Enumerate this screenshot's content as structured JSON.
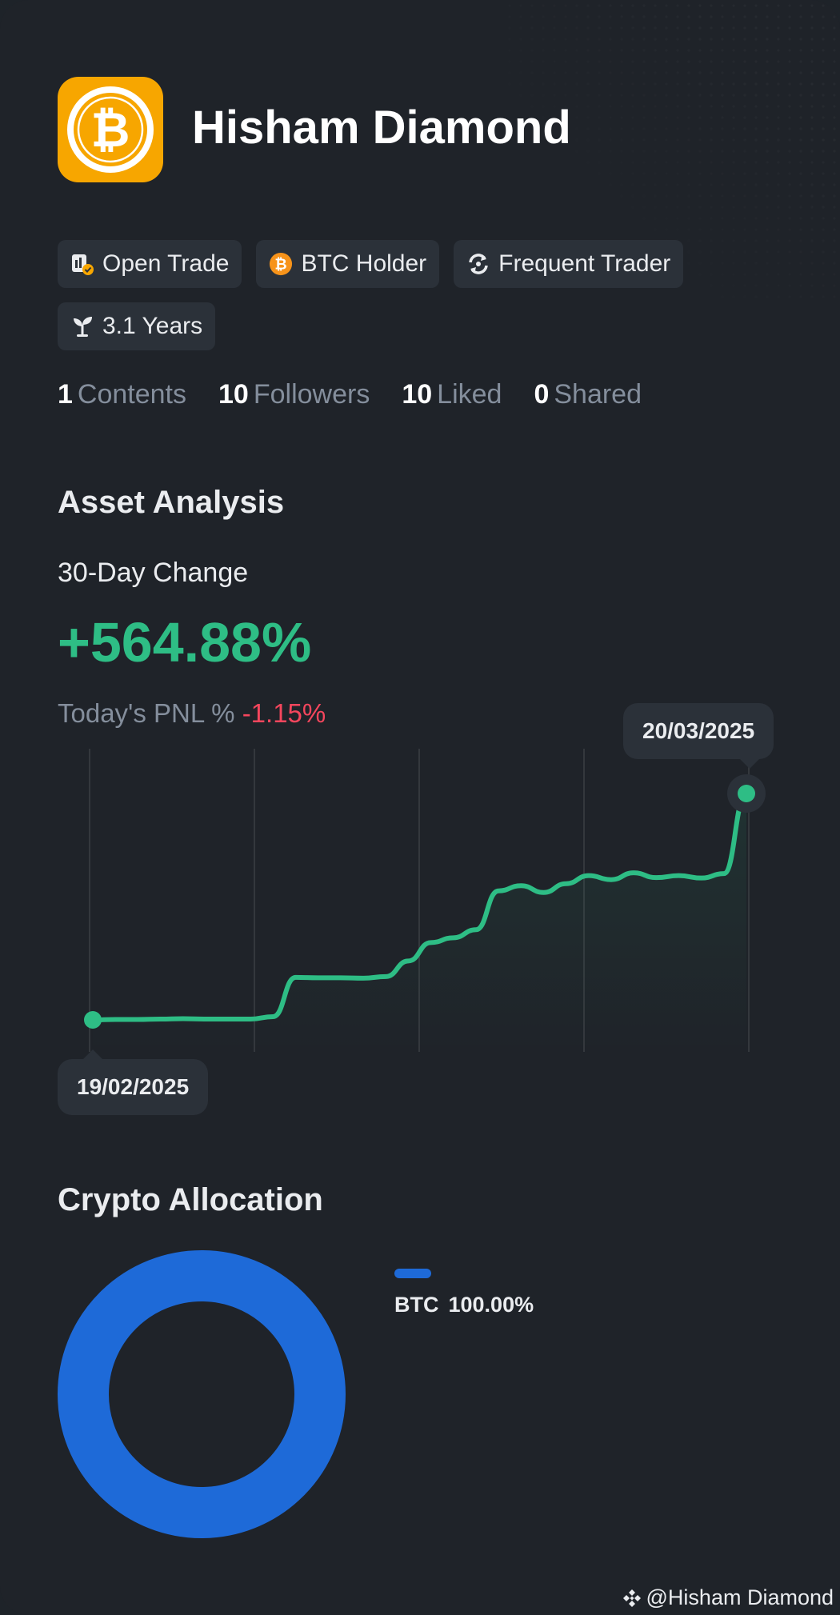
{
  "profile": {
    "name": "Hisham Diamond"
  },
  "tags": [
    {
      "icon": "open-trade-icon",
      "label": "Open Trade"
    },
    {
      "icon": "bitcoin-icon",
      "label": "BTC Holder"
    },
    {
      "icon": "refresh-icon",
      "label": "Frequent Trader"
    },
    {
      "icon": "sprout-icon",
      "label": "3.1 Years"
    }
  ],
  "stats": [
    {
      "count": "1",
      "label": "Contents"
    },
    {
      "count": "10",
      "label": "Followers"
    },
    {
      "count": "10",
      "label": "Liked"
    },
    {
      "count": "0",
      "label": "Shared"
    }
  ],
  "asset_analysis": {
    "title": "Asset Analysis",
    "change_label": "30-Day Change",
    "change_value": "+564.88%",
    "pnl_label": "Today's PNL %",
    "pnl_value": "-1.15%"
  },
  "chart_data": {
    "type": "line",
    "start_date": "19/02/2025",
    "end_date": "20/03/2025",
    "y_unit": "percent",
    "values": [
      0,
      1,
      1,
      2,
      3,
      2,
      2,
      2,
      8,
      106,
      105,
      105,
      104,
      108,
      147,
      193,
      205,
      225,
      322,
      335,
      318,
      340,
      360,
      350,
      367,
      355,
      360,
      354,
      365,
      565
    ],
    "grid": "vertical",
    "colors": {
      "line": "#2ebd85",
      "fill": "#2ebd85"
    }
  },
  "crypto_allocation": {
    "title": "Crypto Allocation",
    "items": [
      {
        "asset": "BTC",
        "percent": "100.00%",
        "fraction": 1.0,
        "color": "#1e6ad8"
      }
    ]
  },
  "footer": {
    "handle": "@Hisham Diamond",
    "icon": "binance-logo-icon"
  },
  "colors": {
    "background": "#1f2329",
    "positive": "#2ebd85",
    "negative": "#f6465d",
    "muted": "#848e9c",
    "chip": "#2b3139",
    "avatar": "#f7a600"
  }
}
